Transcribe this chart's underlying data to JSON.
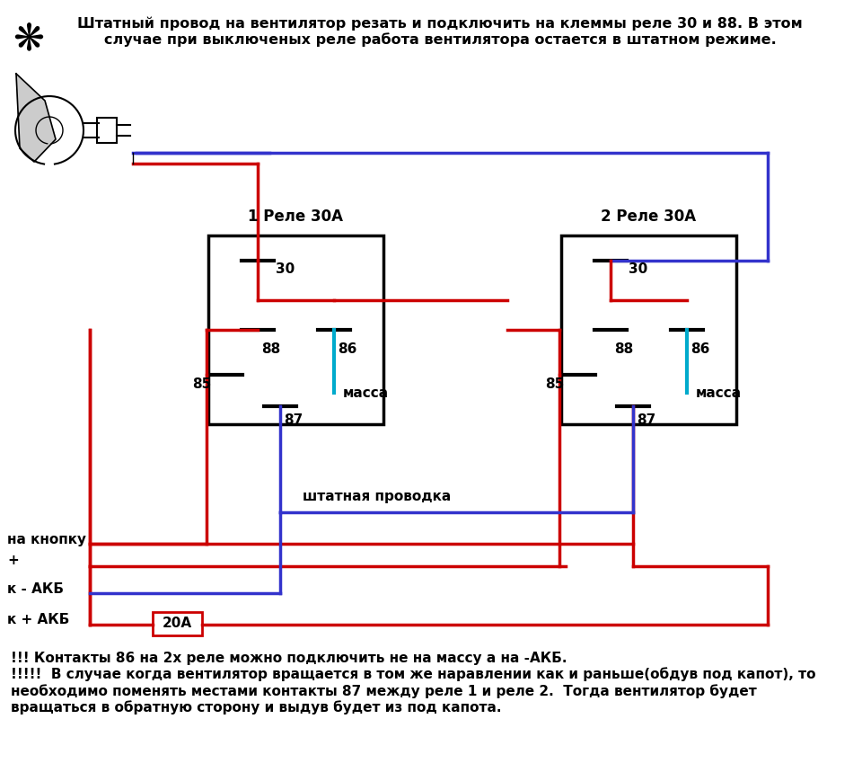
{
  "title_text": "Штатный провод на вентилятор резать и подключить на клеммы реле 30 и 88. В этом\nслучае при выключеных реле работа вентилятора остается в штатном режиме.",
  "relay1_label": "1 Реле 30А",
  "relay2_label": "2 Реле 30А",
  "footnote": "!!! Контакты 86 на 2х реле можно подключить не на массу а на -АКБ.\n!!!!!  В случае когда вентилятор вращается в том же наравлении как и раньше(обдув под капот), то\nнеобходимо поменять местами контакты 87 между реле 1 и реле 2.  Тогда вентилятор будет\nвращаться в обратную сторону и выдув будет из под капота.",
  "bg_color": "#ffffff",
  "wire_red": "#cc0000",
  "wire_blue": "#3333cc",
  "wire_cyan": "#00aacc",
  "wire_black": "#000000",
  "label_na_knopku": "на кнопку",
  "label_plus": "+",
  "label_k_akb_minus": "к - АКБ",
  "label_k_akb_plus": "к + АКБ",
  "label_massa1": "масса",
  "label_massa2": "масса",
  "label_shtatnaya": "штатная проводка",
  "label_20a": "20А"
}
